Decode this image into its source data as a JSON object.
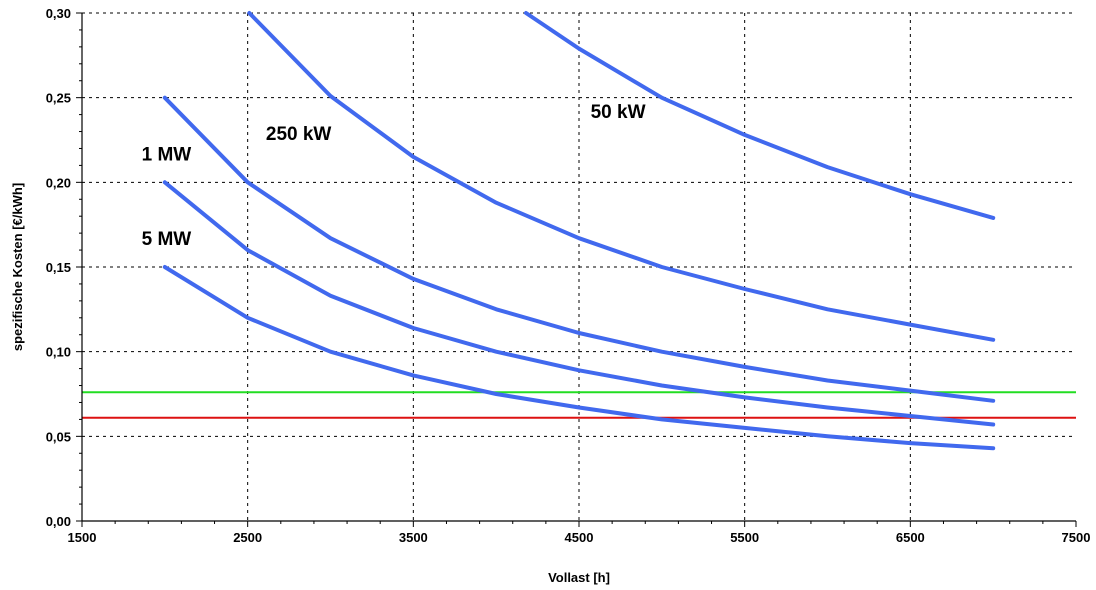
{
  "chart_data": {
    "type": "line",
    "xlabel": "Vollast [h]",
    "ylabel": "spezifische Kosten [€/kWh]",
    "xlim": [
      1500,
      7500
    ],
    "ylim": [
      0,
      0.3
    ],
    "x_ticks": [
      "1500",
      "2500",
      "3500",
      "4500",
      "5500",
      "6500",
      "7500"
    ],
    "y_ticks": [
      "0,00",
      "0,05",
      "0,10",
      "0,15",
      "0,20",
      "0,25",
      "0,30"
    ],
    "grid": true,
    "series": [
      {
        "name": "50 kW",
        "color": "#4169ee",
        "x": [
          4180,
          4500,
          5000,
          5500,
          6000,
          6500,
          7000
        ],
        "y": [
          0.3,
          0.279,
          0.25,
          0.228,
          0.209,
          0.193,
          0.179
        ]
      },
      {
        "name": "250 kW",
        "color": "#4169ee",
        "x": [
          2510,
          3000,
          3500,
          4000,
          4500,
          5000,
          5500,
          6000,
          6500,
          7000
        ],
        "y": [
          0.3,
          0.251,
          0.215,
          0.188,
          0.167,
          0.15,
          0.137,
          0.125,
          0.116,
          0.107
        ]
      },
      {
        "name": "1 MW",
        "color": "#4169ee",
        "x": [
          2000,
          2500,
          3000,
          3500,
          4000,
          4500,
          5000,
          5500,
          6000,
          6500,
          7000
        ],
        "y": [
          0.25,
          0.2,
          0.167,
          0.143,
          0.125,
          0.111,
          0.1,
          0.091,
          0.083,
          0.077,
          0.071
        ]
      },
      {
        "name": "",
        "color": "#4169ee",
        "x": [
          2000,
          2500,
          3000,
          3500,
          4000,
          4500,
          5000,
          5500,
          6000,
          6500,
          7000
        ],
        "y": [
          0.2,
          0.16,
          0.133,
          0.114,
          0.1,
          0.089,
          0.08,
          0.073,
          0.067,
          0.062,
          0.057
        ]
      },
      {
        "name": "5 MW",
        "color": "#4169ee",
        "x": [
          2000,
          2500,
          3000,
          3500,
          4000,
          4500,
          5000,
          5500,
          6000,
          6500,
          7000
        ],
        "y": [
          0.15,
          0.12,
          0.1,
          0.086,
          0.075,
          0.067,
          0.06,
          0.055,
          0.05,
          0.046,
          0.043
        ]
      }
    ],
    "reference_lines": [
      {
        "y": 0.076,
        "color": "#22dd22"
      },
      {
        "y": 0.061,
        "color": "#dd1111"
      }
    ],
    "annotations": [
      {
        "text": "50 kW",
        "x": 4570,
        "y": 0.238
      },
      {
        "text": "250 kW",
        "x": 2610,
        "y": 0.225
      },
      {
        "text": "1 MW",
        "x": 1860,
        "y": 0.213
      },
      {
        "text": "5 MW",
        "x": 1860,
        "y": 0.163
      }
    ]
  }
}
